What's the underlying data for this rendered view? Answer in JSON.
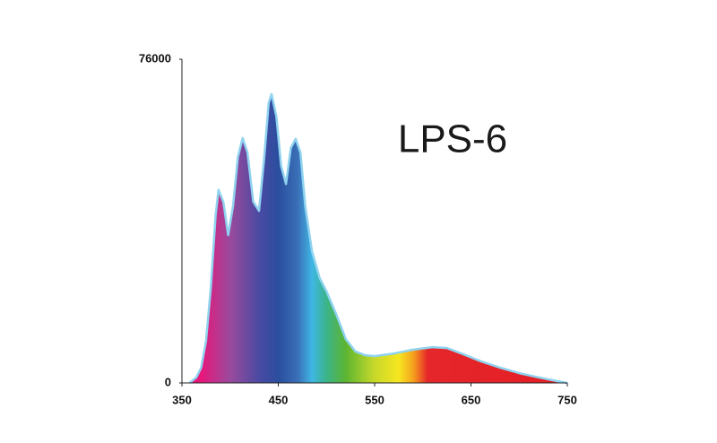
{
  "chart_data": {
    "type": "area",
    "title": "LPS-6",
    "x": [
      358,
      360,
      365,
      370,
      375,
      380,
      385,
      388,
      393,
      398,
      403,
      408,
      413,
      418,
      424,
      430,
      435,
      440,
      443,
      448,
      453,
      458,
      463,
      468,
      473,
      478,
      485,
      493,
      500,
      510,
      520,
      530,
      540,
      550,
      570,
      590,
      610,
      625,
      640,
      660,
      680,
      700,
      720,
      740,
      750
    ],
    "values": [
      0,
      400,
      1300,
      3600,
      9900,
      22500,
      39400,
      45300,
      42500,
      34700,
      41500,
      53000,
      57500,
      54100,
      42500,
      40400,
      52000,
      65700,
      67800,
      62500,
      50900,
      46700,
      55200,
      57300,
      54100,
      41500,
      30900,
      24600,
      21500,
      16200,
      10300,
      7400,
      6500,
      6300,
      6900,
      7800,
      8400,
      8200,
      6900,
      5100,
      3600,
      2300,
      1300,
      400,
      0
    ],
    "line_color": "#8fd3f0",
    "xlim": [
      350,
      750
    ],
    "xticks": [
      350,
      450,
      550,
      650,
      750
    ],
    "ylim": [
      0,
      76000
    ],
    "yticks": [
      0,
      76000
    ]
  }
}
